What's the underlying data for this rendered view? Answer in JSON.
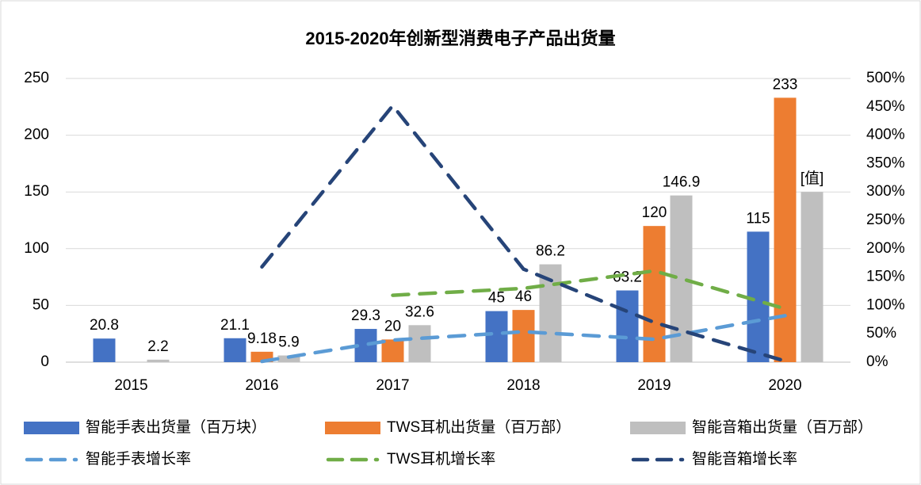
{
  "chart_data": {
    "type": "bar",
    "title": "2015-2020年创新型消费电子产品出货量",
    "categories": [
      "2015",
      "2016",
      "2017",
      "2018",
      "2019",
      "2020"
    ],
    "series": [
      {
        "name": "智能手表出货量（百万块）",
        "type": "bar",
        "color": "#4472c4",
        "values": [
          20.8,
          21.1,
          29.3,
          45,
          63.2,
          115
        ]
      },
      {
        "name": "TWS耳机出货量（百万部）",
        "type": "bar",
        "color": "#ed7d31",
        "values": [
          null,
          9.18,
          20,
          46,
          120,
          233
        ]
      },
      {
        "name": "智能音箱出货量（百万部）",
        "type": "bar",
        "color": "#bfbfbf",
        "values": [
          2.2,
          5.9,
          32.6,
          86.2,
          146.9,
          150
        ],
        "value_labels": [
          "2.2",
          "5.9",
          "32.6",
          "86.2",
          "146.9",
          "[值]"
        ]
      },
      {
        "name": "智能手表增长率",
        "type": "line",
        "axis": "y2",
        "dashed": true,
        "color": "#5b9bd5",
        "values": [
          null,
          1.4,
          38.9,
          53.6,
          40.4,
          82
        ]
      },
      {
        "name": "TWS耳机增长率",
        "type": "line",
        "axis": "y2",
        "dashed": true,
        "color": "#70ad47",
        "values": [
          null,
          null,
          117.9,
          130,
          160.9,
          94.2
        ]
      },
      {
        "name": "智能音箱增长率",
        "type": "line",
        "axis": "y2",
        "dashed": true,
        "color": "#264478",
        "values": [
          null,
          168,
          452,
          164,
          70,
          2
        ]
      }
    ],
    "ylim": [
      0,
      250
    ],
    "yticks": [
      0,
      50,
      100,
      150,
      200,
      250
    ],
    "y2lim": [
      0,
      500
    ],
    "y2ticks": [
      {
        "value": 0,
        "label": "0%"
      },
      {
        "value": 50,
        "label": "50%"
      },
      {
        "value": 100,
        "label": "100%"
      },
      {
        "value": 150,
        "label": "150%"
      },
      {
        "value": 200,
        "label": "200%"
      },
      {
        "value": 250,
        "label": "250%"
      },
      {
        "value": 300,
        "label": "300%"
      },
      {
        "value": 350,
        "label": "350%"
      },
      {
        "value": 400,
        "label": "400%"
      },
      {
        "value": 450,
        "label": "450%"
      },
      {
        "value": 500,
        "label": "500%"
      }
    ],
    "grid": true,
    "legend": "bottom"
  }
}
